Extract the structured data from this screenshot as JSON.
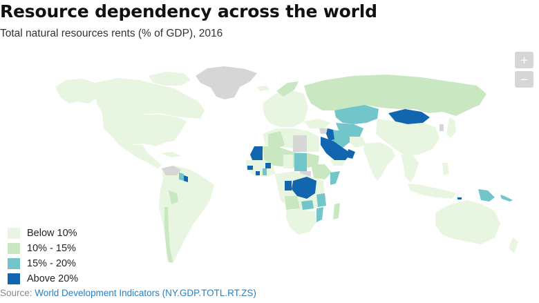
{
  "title": "Resource dependency across the world",
  "subtitle": "Total natural resources rents (% of GDP), 2016",
  "zoom": {
    "in_label": "+",
    "out_label": "−"
  },
  "colors": {
    "below_10": "#e8f5e0",
    "10_15": "#c9e8c2",
    "15_20": "#72c6c9",
    "above_20": "#1266b0",
    "no_data": "#d6d6d6"
  },
  "legend": {
    "items": [
      {
        "label": "Below 10%",
        "color": "#e8f5e0"
      },
      {
        "label": "10% - 15%",
        "color": "#c9e8c2"
      },
      {
        "label": "15% - 20%",
        "color": "#72c6c9"
      },
      {
        "label": "Above 20%",
        "color": "#1266b0"
      }
    ]
  },
  "source": {
    "prefix": "Source: ",
    "link_text": "World Development Indicators (NY.GDP.TOTL.RT.ZS)"
  }
}
